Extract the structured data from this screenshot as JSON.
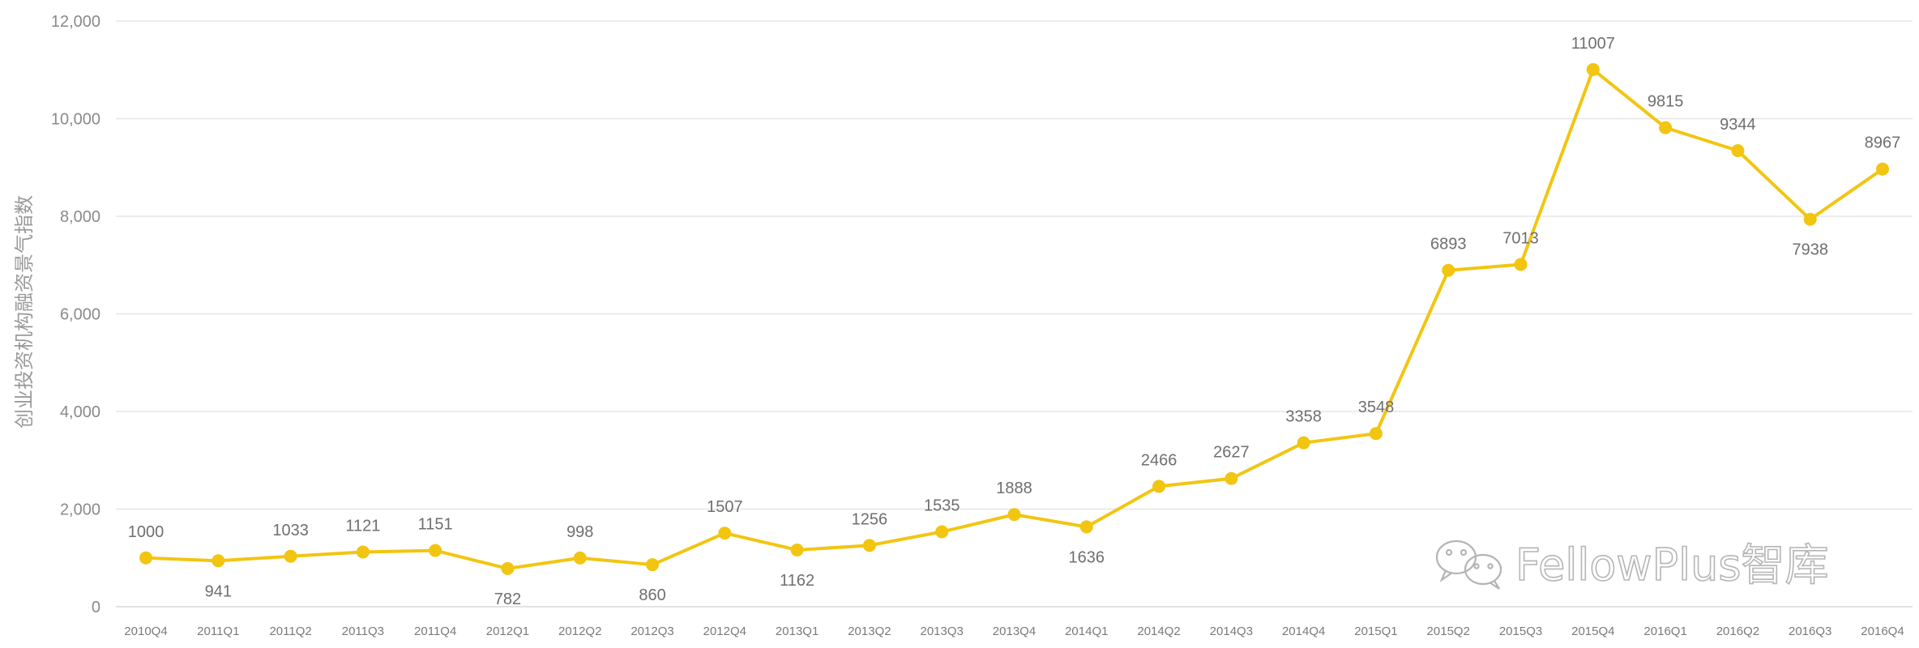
{
  "chart_data": {
    "type": "line",
    "ylabel": "创业投资机构融资景气指数",
    "ylim": [
      0,
      12000
    ],
    "yticks": [
      "0",
      "2,000",
      "4,000",
      "6,000",
      "8,000",
      "10,000",
      "12,000"
    ],
    "grid": true,
    "color": "#f2c511",
    "categories": [
      "2010Q4",
      "2011Q1",
      "2011Q2",
      "2011Q3",
      "2011Q4",
      "2012Q1",
      "2012Q2",
      "2012Q3",
      "2012Q4",
      "2013Q1",
      "2013Q2",
      "2013Q3",
      "2013Q4",
      "2014Q1",
      "2014Q2",
      "2014Q3",
      "2014Q4",
      "2015Q1",
      "2015Q2",
      "2015Q3",
      "2015Q4",
      "2016Q1",
      "2016Q2",
      "2016Q3",
      "2016Q4"
    ],
    "values": [
      1000,
      941,
      1033,
      1121,
      1151,
      782,
      998,
      860,
      1507,
      1162,
      1256,
      1535,
      1888,
      1636,
      2466,
      2627,
      3358,
      3548,
      6893,
      7013,
      11007,
      9815,
      9344,
      7938,
      8967
    ],
    "label_below": [
      false,
      true,
      false,
      false,
      false,
      true,
      false,
      true,
      false,
      true,
      false,
      false,
      false,
      true,
      false,
      false,
      false,
      false,
      false,
      false,
      false,
      false,
      false,
      true,
      false
    ]
  },
  "watermark": {
    "text": "FellowPlus智库",
    "icon": "wechat-icon"
  }
}
